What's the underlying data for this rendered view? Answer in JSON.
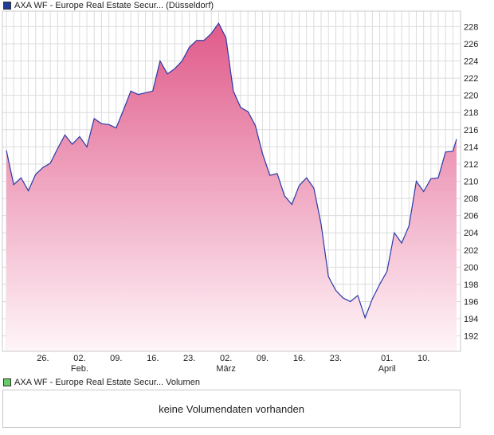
{
  "colors": {
    "price_swatch": "#1f3d99",
    "volume_swatch": "#66cc66",
    "line": "#2a3aa8",
    "fill_top": "#e05a8a",
    "fill_bottom": "#fff5f9",
    "grid": "#dcdcdc"
  },
  "price_legend": "AXA WF - Europe Real Estate Secur... (Düsseldorf)",
  "volume_legend": "AXA WF - Europe Real Estate Secur... Volumen",
  "volume_message": "keine Volumendaten vorhanden",
  "chart_data": {
    "type": "area",
    "title": "AXA WF - Europe Real Estate Secur... (Düsseldorf)",
    "xlabel": "",
    "ylabel": "",
    "ylim": [
      190.2,
      229.8
    ],
    "grid": true,
    "y_ticks": [
      192,
      194,
      196,
      198,
      200,
      202,
      204,
      206,
      208,
      210,
      212,
      214,
      216,
      218,
      220,
      222,
      224,
      226,
      228
    ],
    "x_ticks": [
      {
        "day": "26.",
        "month": "",
        "index": 10
      },
      {
        "day": "02.",
        "month": "Feb.",
        "index": 20
      },
      {
        "day": "09.",
        "month": "",
        "index": 30
      },
      {
        "day": "16.",
        "month": "",
        "index": 40
      },
      {
        "day": "23.",
        "month": "",
        "index": 50
      },
      {
        "day": "02.",
        "month": "März",
        "index": 60
      },
      {
        "day": "09.",
        "month": "",
        "index": 70
      },
      {
        "day": "16.",
        "month": "",
        "index": 80
      },
      {
        "day": "23.",
        "month": "",
        "index": 90
      },
      {
        "day": "01.",
        "month": "April",
        "index": 104
      },
      {
        "day": "10.",
        "month": "",
        "index": 114
      }
    ],
    "n_points": 124,
    "series": [
      {
        "name": "AXA WF - Europe Real Estate Secur... (Düsseldorf)",
        "points": [
          [
            0,
            213.6
          ],
          [
            2,
            209.6
          ],
          [
            4,
            210.4
          ],
          [
            6,
            208.9
          ],
          [
            8,
            210.8
          ],
          [
            10,
            211.6
          ],
          [
            12,
            212.1
          ],
          [
            14,
            213.8
          ],
          [
            16,
            215.4
          ],
          [
            18,
            214.3
          ],
          [
            20,
            215.2
          ],
          [
            22,
            214.0
          ],
          [
            24,
            217.3
          ],
          [
            26,
            216.7
          ],
          [
            28,
            216.6
          ],
          [
            30,
            216.2
          ],
          [
            32,
            218.3
          ],
          [
            34,
            220.5
          ],
          [
            36,
            220.1
          ],
          [
            38,
            220.3
          ],
          [
            40,
            220.5
          ],
          [
            42,
            224.0
          ],
          [
            44,
            222.5
          ],
          [
            46,
            223.1
          ],
          [
            48,
            224.0
          ],
          [
            50,
            225.6
          ],
          [
            52,
            226.4
          ],
          [
            54,
            226.4
          ],
          [
            56,
            227.2
          ],
          [
            58,
            228.4
          ],
          [
            60,
            226.7
          ],
          [
            62,
            220.5
          ],
          [
            64,
            218.6
          ],
          [
            66,
            218.1
          ],
          [
            68,
            216.5
          ],
          [
            70,
            213.2
          ],
          [
            72,
            210.7
          ],
          [
            74,
            210.9
          ],
          [
            76,
            208.3
          ],
          [
            78,
            207.3
          ],
          [
            80,
            209.5
          ],
          [
            82,
            210.4
          ],
          [
            84,
            209.2
          ],
          [
            86,
            205.0
          ],
          [
            88,
            198.9
          ],
          [
            90,
            197.3
          ],
          [
            92,
            196.4
          ],
          [
            94,
            196.0
          ],
          [
            96,
            196.7
          ],
          [
            98,
            194.1
          ],
          [
            100,
            196.3
          ],
          [
            102,
            198.0
          ],
          [
            104,
            199.5
          ],
          [
            106,
            204.0
          ],
          [
            108,
            202.8
          ],
          [
            110,
            204.8
          ],
          [
            112,
            210.0
          ],
          [
            114,
            208.8
          ],
          [
            116,
            210.3
          ],
          [
            118,
            210.4
          ],
          [
            120,
            213.4
          ],
          [
            122,
            213.5
          ],
          [
            123,
            214.9
          ]
        ]
      }
    ]
  }
}
